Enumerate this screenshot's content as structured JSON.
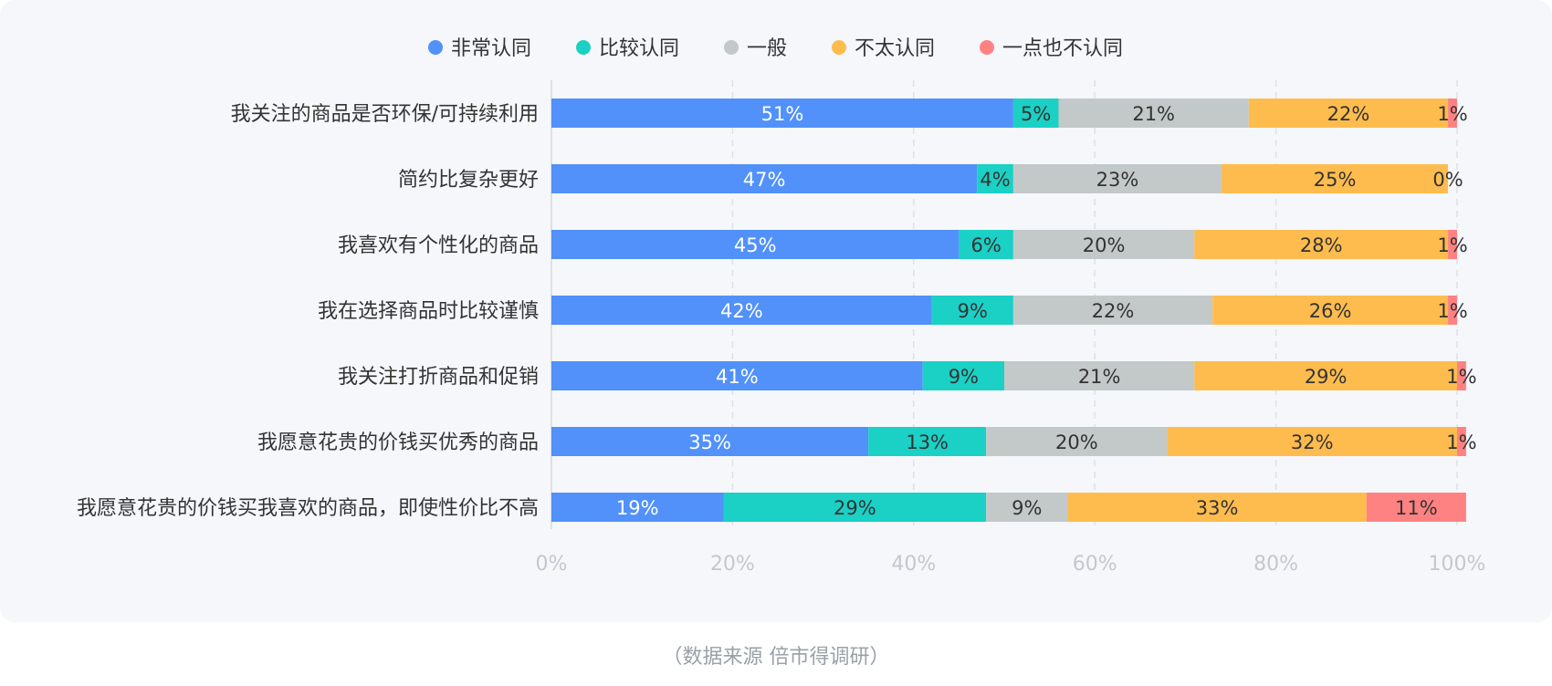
{
  "chart_data": {
    "type": "bar",
    "orientation": "horizontal",
    "stacked": true,
    "categories": [
      "我关注的商品是否环保/可持续利用",
      "简约比复杂更好",
      "我喜欢有个性化的商品",
      "我在选择商品时比较谨慎",
      "我关注打折商品和促销",
      "我愿意花贵的价钱买优秀的商品",
      "我愿意花贵的价钱买我喜欢的商品，即使性价比不高"
    ],
    "series": [
      {
        "name": "非常认同",
        "color": "#5191f9",
        "values": [
          51,
          47,
          45,
          42,
          41,
          35,
          19
        ]
      },
      {
        "name": "比较认同",
        "color": "#1bd0c4",
        "values": [
          5,
          4,
          6,
          9,
          9,
          13,
          29
        ]
      },
      {
        "name": "一般",
        "color": "#c2c9c8",
        "values": [
          21,
          23,
          20,
          22,
          21,
          20,
          9
        ]
      },
      {
        "name": "不太认同",
        "color": "#ffbc4e",
        "values": [
          22,
          25,
          28,
          26,
          29,
          32,
          33
        ]
      },
      {
        "name": "一点也不认同",
        "color": "#ff8282",
        "values": [
          1,
          0,
          1,
          1,
          1,
          1,
          11
        ]
      }
    ],
    "xlim": [
      0,
      100
    ],
    "x_ticks": [
      "0%",
      "20%",
      "40%",
      "60%",
      "80%",
      "100%"
    ],
    "grid": "vertical-dashed",
    "legend_position": "top",
    "data_label_suffix": "%"
  },
  "source_note": "（数据来源  倍市得调研）"
}
